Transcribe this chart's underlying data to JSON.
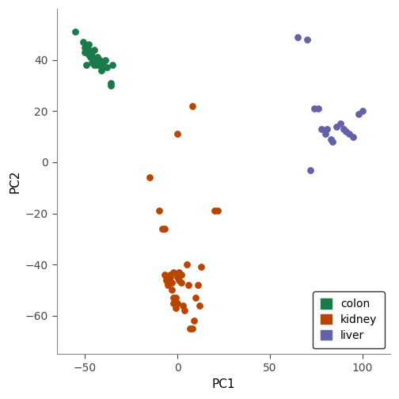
{
  "colon_x": [
    -55,
    -51,
    -50,
    -50,
    -49,
    -48,
    -48,
    -48,
    -47,
    -46,
    -46,
    -46,
    -45,
    -45,
    -45,
    -44,
    -44,
    -43,
    -43,
    -43,
    -42,
    -42,
    -41,
    -41,
    -40,
    -40,
    -39,
    -38,
    -36,
    -36,
    -35
  ],
  "colon_y": [
    51,
    47,
    45,
    43,
    38,
    46,
    44,
    42,
    41,
    43,
    41,
    39,
    39,
    44,
    38,
    40,
    39,
    41,
    39,
    38,
    40,
    38,
    38,
    36,
    39,
    37,
    40,
    37,
    31,
    30,
    38
  ],
  "kidney_x": [
    -15,
    -10,
    -8,
    -7,
    -7,
    -6,
    -6,
    -5,
    -5,
    -4,
    -4,
    -3,
    -3,
    -2,
    -2,
    -2,
    -1,
    -1,
    0,
    0,
    1,
    1,
    2,
    2,
    3,
    4,
    5,
    6,
    7,
    8,
    9,
    10,
    11,
    12,
    13,
    20,
    22,
    0,
    8
  ],
  "kidney_y": [
    -6,
    -19,
    -26,
    -26,
    -44,
    -45,
    -46,
    -47,
    -48,
    -44,
    -45,
    -47,
    -50,
    -53,
    -55,
    -43,
    -53,
    -57,
    -55,
    -45,
    -43,
    -46,
    -44,
    -47,
    -56,
    -58,
    -40,
    -48,
    -65,
    -65,
    -62,
    -53,
    -48,
    -56,
    -41,
    -19,
    -19,
    11,
    22
  ],
  "liver_x": [
    65,
    70,
    72,
    74,
    76,
    78,
    80,
    81,
    83,
    84,
    86,
    88,
    90,
    91,
    93,
    95,
    98,
    100
  ],
  "liver_y": [
    49,
    48,
    -3,
    21,
    21,
    13,
    11,
    13,
    9,
    8,
    14,
    15,
    13,
    12,
    11,
    10,
    19,
    20
  ],
  "colon_color": "#1a7a4a",
  "kidney_color": "#b84600",
  "liver_color": "#6361a8",
  "marker_size": 28,
  "xlim": [
    -65,
    115
  ],
  "ylim": [
    -75,
    60
  ],
  "xticks": [
    -50,
    0,
    50,
    100
  ],
  "yticks": [
    -60,
    -40,
    -20,
    0,
    20,
    40
  ],
  "xlabel": "PC1",
  "ylabel": "PC2",
  "legend_labels": [
    "colon",
    "kidney",
    "liver"
  ],
  "bg_color": "#ffffff"
}
